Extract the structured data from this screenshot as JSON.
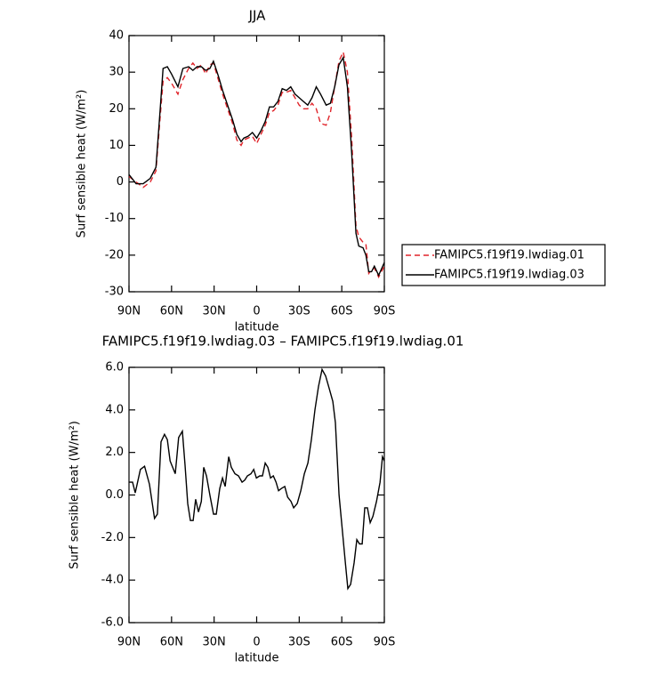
{
  "chart_data": [
    {
      "type": "line",
      "title": "JJA",
      "xlabel": "latitude",
      "ylabel": "Surf sensible heat (W/m²)",
      "x": [
        90,
        85,
        80,
        75,
        71,
        68,
        66,
        63,
        60,
        55.5,
        52,
        48,
        45,
        42,
        39,
        36,
        33,
        30.5,
        27,
        24,
        20.5,
        17,
        14,
        11,
        9,
        6,
        3,
        0,
        -3,
        -6,
        -9,
        -12,
        -15,
        -18,
        -21,
        -24,
        -27,
        -30,
        -33,
        -36,
        -39,
        -42,
        -45,
        -49,
        -52,
        -55,
        -58,
        -61,
        -64,
        -67,
        -70,
        -72,
        -75,
        -77,
        -79,
        -81,
        -83,
        -86,
        -90
      ],
      "series": [
        {
          "name": "FAMIPC5.f19f19.lwdiag.01",
          "color": "#e0242a",
          "linestyle": "dashed",
          "values": [
            1.5,
            0,
            -1.5,
            0,
            3,
            18,
            27.5,
            28.5,
            27,
            24,
            28,
            31,
            32.5,
            31,
            32,
            29.5,
            32,
            32.5,
            28,
            24,
            20,
            16,
            11.5,
            10,
            11.5,
            12,
            12.5,
            10.5,
            13,
            15.5,
            19,
            19.5,
            21,
            24.5,
            24.5,
            25,
            23,
            21,
            20,
            20,
            21.5,
            20,
            16,
            15.5,
            19,
            26,
            33,
            35.5,
            30,
            12,
            -12,
            -15,
            -16.5,
            -17,
            -25,
            -24,
            -23.5,
            -26,
            -23
          ]
        },
        {
          "name": "FAMIPC5.f19f19.lwdiag.03",
          "color": "#000000",
          "linestyle": "solid",
          "values": [
            2,
            -0.5,
            -0.5,
            1,
            4,
            20,
            31,
            31.5,
            29.5,
            26,
            31,
            31.5,
            30.5,
            31.5,
            31.5,
            30.5,
            31,
            33,
            29,
            25,
            21,
            17,
            13,
            11,
            12,
            12.5,
            13.5,
            12,
            14,
            16.5,
            20.5,
            20.5,
            22,
            25.5,
            25,
            26,
            24,
            23,
            22,
            21,
            23,
            26,
            24,
            21,
            21.5,
            26,
            32,
            34,
            26,
            8,
            -14,
            -17.5,
            -18,
            -20,
            -24.5,
            -24.5,
            -23,
            -25.5,
            -22
          ]
        }
      ],
      "xlim": [
        90,
        -90
      ],
      "xticks": [
        {
          "value": 90,
          "label": "90N"
        },
        {
          "value": 60,
          "label": "60N"
        },
        {
          "value": 30,
          "label": "30N"
        },
        0,
        {
          "value": -30,
          "label": "30S"
        },
        {
          "value": -60,
          "label": "60S"
        },
        {
          "value": -90,
          "label": "90S"
        }
      ],
      "ylim": [
        -30,
        40
      ],
      "yticks": [
        -30,
        -20,
        -10,
        0,
        10,
        20,
        30,
        40
      ],
      "legend": "right"
    },
    {
      "type": "line",
      "title": "FAMIPC5.f19f19.lwdiag.03 – FAMIPC5.f19f19.lwdiag.01",
      "xlabel": "latitude",
      "ylabel": "Surf sensible heat (W/m²)",
      "x": [
        90,
        87.5,
        85.6,
        82,
        79,
        75.6,
        72,
        70,
        67.4,
        65,
        63,
        61,
        57.4,
        55,
        52.4,
        50.5,
        48.6,
        46.7,
        44.8,
        43,
        41,
        39,
        37.3,
        35.4,
        33,
        30.4,
        28.5,
        26,
        24.1,
        22.2,
        19.7,
        17.9,
        15.3,
        12.8,
        10.3,
        8.4,
        6.5,
        4,
        2.1,
        0.2,
        -2.2,
        -4.1,
        -6,
        -7.9,
        -9.8,
        -11.7,
        -13.7,
        -15.4,
        -17.3,
        -19.8,
        -21.8,
        -24.2,
        -26.1,
        -28.6,
        -31.1,
        -33.6,
        -36.1,
        -38.6,
        -41.1,
        -43.6,
        -46.1,
        -48.6,
        -51.2,
        -53.7,
        -55.5,
        -58.1,
        -59.9,
        -62.4,
        -64.3,
        -66.2,
        -68.7,
        -70.6,
        -72.5,
        -74.4,
        -76.2,
        -78.1,
        -80,
        -82,
        -84.5,
        -87,
        -88.7,
        -90
      ],
      "values": [
        0.6,
        0.6,
        0.1,
        1.2,
        1.35,
        0.5,
        -1.1,
        -0.9,
        2.5,
        2.85,
        2.6,
        1.6,
        1.0,
        2.7,
        3.0,
        1.4,
        -0.4,
        -1.2,
        -1.2,
        -0.2,
        -0.8,
        -0.3,
        1.3,
        0.9,
        0.0,
        -0.9,
        -0.9,
        0.3,
        0.8,
        0.4,
        1.8,
        1.3,
        1.0,
        0.9,
        0.6,
        0.7,
        0.9,
        1.0,
        1.2,
        0.8,
        0.9,
        0.9,
        1.5,
        1.3,
        0.8,
        0.9,
        0.6,
        0.2,
        0.3,
        0.4,
        -0.1,
        -0.3,
        -0.6,
        -0.4,
        0.2,
        1.0,
        1.5,
        2.6,
        4.0,
        5.1,
        5.9,
        5.6,
        5.0,
        4.4,
        3.4,
        0.0,
        -1.3,
        -3.1,
        -4.4,
        -4.2,
        -3.2,
        -2.1,
        -2.3,
        -2.3,
        -0.6,
        -0.6,
        -1.3,
        -1.0,
        -0.3,
        0.6,
        1.8,
        1.6
      ],
      "color": "#000000",
      "xlim": [
        90,
        -90
      ],
      "xticks": [
        {
          "value": 90,
          "label": "90N"
        },
        {
          "value": 60,
          "label": "60N"
        },
        {
          "value": 30,
          "label": "30N"
        },
        0,
        {
          "value": -30,
          "label": "30S"
        },
        {
          "value": -60,
          "label": "60S"
        },
        {
          "value": -90,
          "label": "90S"
        }
      ],
      "ylim": [
        -6,
        6
      ],
      "yticks": [
        {
          "value": -6,
          "label": "-6.0"
        },
        {
          "value": -4,
          "label": "-4.0"
        },
        {
          "value": -2,
          "label": "-2.0"
        },
        {
          "value": 0,
          "label": "0.0"
        },
        {
          "value": 2,
          "label": "2.0"
        },
        {
          "value": 4,
          "label": "4.0"
        },
        {
          "value": 6,
          "label": "6.0"
        }
      ]
    }
  ]
}
